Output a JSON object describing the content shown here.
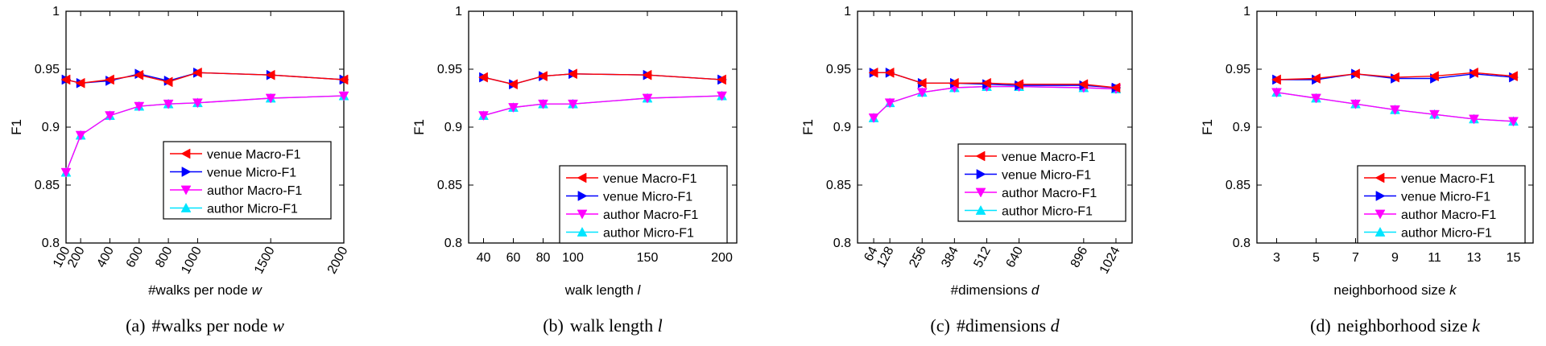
{
  "figure": {
    "y_range": [
      0.8,
      1.0
    ],
    "y_ticks": [
      0.8,
      0.85,
      0.9,
      0.95,
      1
    ],
    "y_tick_labels": [
      "0.8",
      "0.85",
      "0.9",
      "0.95",
      "1"
    ],
    "grid": false,
    "series_styles": [
      {
        "name": "venue Macro-F1",
        "color": "#ff0000",
        "marker": "triangle-left"
      },
      {
        "name": "venue Micro-F1",
        "color": "#0000ff",
        "marker": "triangle-right"
      },
      {
        "name": "author Macro-F1",
        "color": "#ff00ff",
        "marker": "triangle-down"
      },
      {
        "name": "author Micro-F1",
        "color": "#00e5ff",
        "marker": "triangle-up"
      }
    ]
  },
  "chart_data": [
    {
      "type": "line",
      "caption_label": "(a)",
      "caption_text": "#walks per node ",
      "caption_var": "w",
      "xlabel": "#walks per node ",
      "xlabel_var": "w",
      "ylabel": "F1",
      "x": [
        100,
        200,
        400,
        600,
        800,
        1000,
        1500,
        2000
      ],
      "xlim": [
        100,
        2000
      ],
      "x_tick_labels": [
        "100",
        "200",
        "400",
        "600",
        "800",
        "1000",
        "1500",
        "2000"
      ],
      "x_tick_rotated": true,
      "ylim": [
        0.8,
        1
      ],
      "legend": "bottom-right",
      "series": [
        {
          "name": "venue Macro-F1",
          "values": [
            0.941,
            0.938,
            0.941,
            0.945,
            0.939,
            0.947,
            0.945,
            0.941
          ]
        },
        {
          "name": "venue Micro-F1",
          "values": [
            0.941,
            0.938,
            0.94,
            0.946,
            0.94,
            0.947,
            0.945,
            0.941
          ]
        },
        {
          "name": "author Macro-F1",
          "values": [
            0.861,
            0.893,
            0.91,
            0.918,
            0.92,
            0.921,
            0.925,
            0.927
          ]
        },
        {
          "name": "author Micro-F1",
          "values": [
            0.861,
            0.893,
            0.91,
            0.918,
            0.92,
            0.921,
            0.925,
            0.927
          ]
        }
      ]
    },
    {
      "type": "line",
      "caption_label": "(b)",
      "caption_text": "walk length ",
      "caption_var": "l",
      "xlabel": "walk length ",
      "xlabel_var": "l",
      "ylabel": "F1",
      "x": [
        40,
        60,
        80,
        100,
        150,
        200
      ],
      "xlim": [
        30,
        210
      ],
      "x_tick_labels": [
        "40",
        "60",
        "80",
        "100",
        "150",
        "200"
      ],
      "x_tick_rotated": false,
      "ylim": [
        0.8,
        1
      ],
      "legend": "bottom-right",
      "series": [
        {
          "name": "venue Macro-F1",
          "values": [
            0.943,
            0.937,
            0.944,
            0.946,
            0.945,
            0.941
          ]
        },
        {
          "name": "venue Micro-F1",
          "values": [
            0.943,
            0.937,
            0.944,
            0.946,
            0.945,
            0.941
          ]
        },
        {
          "name": "author Macro-F1",
          "values": [
            0.91,
            0.917,
            0.92,
            0.92,
            0.925,
            0.927
          ]
        },
        {
          "name": "author Micro-F1",
          "values": [
            0.91,
            0.917,
            0.92,
            0.92,
            0.925,
            0.927
          ]
        }
      ]
    },
    {
      "type": "line",
      "caption_label": "(c)",
      "caption_text": "#dimensions ",
      "caption_var": "d",
      "xlabel": "#dimensions ",
      "xlabel_var": "d",
      "ylabel": "F1",
      "x": [
        64,
        128,
        256,
        384,
        512,
        640,
        896,
        1024
      ],
      "xlim": [
        0,
        1088
      ],
      "x_tick_labels": [
        "64",
        "128",
        "256",
        "384",
        "512",
        "640",
        "896",
        "1024"
      ],
      "x_tick_rotated": true,
      "ylim": [
        0.8,
        1
      ],
      "legend": "bottom-right",
      "series": [
        {
          "name": "venue Macro-F1",
          "values": [
            0.947,
            0.947,
            0.938,
            0.938,
            0.938,
            0.937,
            0.937,
            0.934
          ]
        },
        {
          "name": "venue Micro-F1",
          "values": [
            0.947,
            0.947,
            0.938,
            0.938,
            0.937,
            0.936,
            0.936,
            0.934
          ]
        },
        {
          "name": "author Macro-F1",
          "values": [
            0.908,
            0.921,
            0.93,
            0.934,
            0.935,
            0.935,
            0.934,
            0.933
          ]
        },
        {
          "name": "author Micro-F1",
          "values": [
            0.908,
            0.921,
            0.93,
            0.934,
            0.935,
            0.935,
            0.934,
            0.933
          ]
        }
      ]
    },
    {
      "type": "line",
      "caption_label": "(d)",
      "caption_text": "neighborhood size ",
      "caption_var": "k",
      "xlabel": "neighborhood size ",
      "xlabel_var": "k",
      "ylabel": "F1",
      "x": [
        3,
        5,
        7,
        9,
        11,
        13,
        15
      ],
      "xlim": [
        2,
        16
      ],
      "x_tick_labels": [
        "3",
        "5",
        "7",
        "9",
        "11",
        "13",
        "15"
      ],
      "x_tick_rotated": false,
      "ylim": [
        0.8,
        1
      ],
      "legend": "bottom-right",
      "series": [
        {
          "name": "venue Macro-F1",
          "values": [
            0.941,
            0.942,
            0.946,
            0.943,
            0.944,
            0.947,
            0.944
          ]
        },
        {
          "name": "venue Micro-F1",
          "values": [
            0.941,
            0.941,
            0.946,
            0.942,
            0.942,
            0.946,
            0.943
          ]
        },
        {
          "name": "author Macro-F1",
          "values": [
            0.93,
            0.925,
            0.92,
            0.915,
            0.911,
            0.907,
            0.905
          ]
        },
        {
          "name": "author Micro-F1",
          "values": [
            0.93,
            0.925,
            0.92,
            0.915,
            0.911,
            0.907,
            0.905
          ]
        }
      ]
    }
  ]
}
